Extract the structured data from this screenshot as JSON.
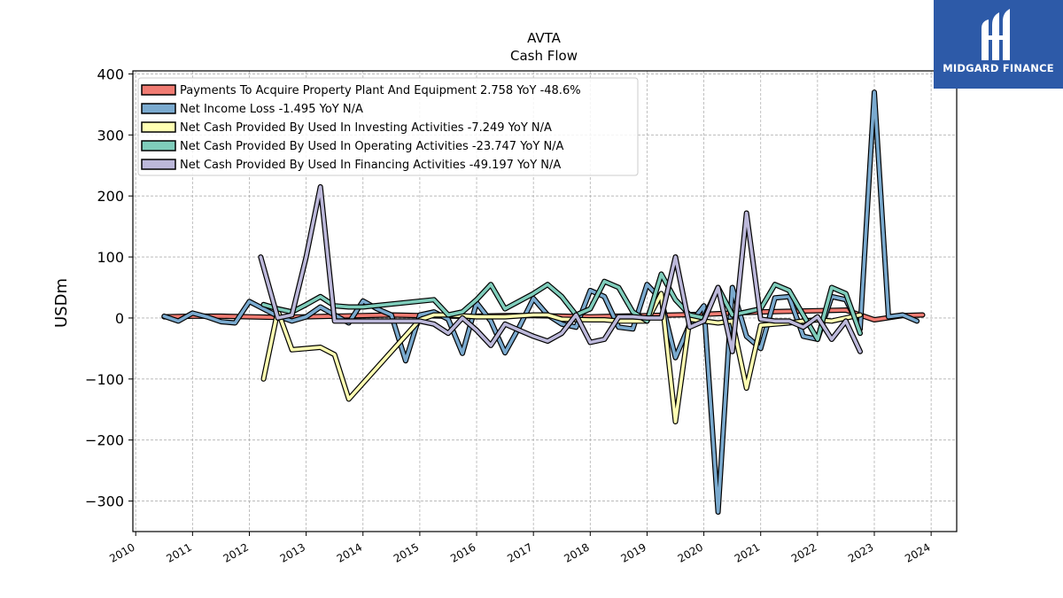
{
  "brand": {
    "name": "MIDGARD FINANCE",
    "bg": "#2d5aa8"
  },
  "chart_data": {
    "type": "line",
    "title": "AVTA",
    "subtitle": "Cash Flow",
    "ylabel": "USDm",
    "xlabel": "",
    "ylim": [
      -350,
      405
    ],
    "xlim": [
      2009.95,
      2024.45
    ],
    "yticks": [
      -300,
      -200,
      -100,
      0,
      100,
      200,
      300,
      400
    ],
    "ytick_labels": [
      "−300",
      "−200",
      "−100",
      "0",
      "100",
      "200",
      "300",
      "400"
    ],
    "xticks": [
      2010,
      2011,
      2012,
      2013,
      2014,
      2015,
      2016,
      2017,
      2018,
      2019,
      2020,
      2021,
      2022,
      2023,
      2024
    ],
    "xtick_labels": [
      "2010",
      "2011",
      "2012",
      "2013",
      "2014",
      "2015",
      "2016",
      "2017",
      "2018",
      "2019",
      "2020",
      "2021",
      "2022",
      "2023",
      "2024"
    ],
    "grid": true,
    "legend_position": "top-left",
    "series": [
      {
        "name": "Payments To Acquire Property Plant And Equipment  2.758 YoY -48.6%",
        "color": "#f07b72",
        "x": [
          2010.5,
          2011.0,
          2011.5,
          2012.0,
          2012.5,
          2013.0,
          2013.5,
          2014.0,
          2014.5,
          2015.0,
          2015.5,
          2016.0,
          2016.5,
          2017.0,
          2017.5,
          2018.0,
          2018.5,
          2019.0,
          2019.5,
          2020.0,
          2020.5,
          2021.0,
          2021.5,
          2022.0,
          2022.5,
          2023.0,
          2023.5,
          2023.85
        ],
        "y": [
          2,
          3,
          3,
          2,
          1,
          2,
          3,
          4,
          5,
          4,
          3,
          3,
          4,
          4,
          3,
          2,
          3,
          4,
          5,
          6,
          8,
          10,
          11,
          12,
          13,
          -3,
          4,
          5
        ]
      },
      {
        "name": "Net Income Loss  -1.495 YoY N/A",
        "color": "#7aaacf",
        "x": [
          2010.5,
          2010.75,
          2011.0,
          2011.25,
          2011.5,
          2011.75,
          2012.0,
          2012.25,
          2012.5,
          2012.75,
          2013.0,
          2013.25,
          2013.5,
          2013.75,
          2014.0,
          2014.25,
          2014.5,
          2014.75,
          2015.0,
          2015.25,
          2015.5,
          2015.75,
          2016.0,
          2016.25,
          2016.5,
          2016.75,
          2017.0,
          2017.25,
          2017.5,
          2017.75,
          2018.0,
          2018.25,
          2018.5,
          2018.75,
          2019.0,
          2019.25,
          2019.5,
          2019.75,
          2020.0,
          2020.25,
          2020.5,
          2020.75,
          2021.0,
          2021.25,
          2021.5,
          2021.75,
          2022.0,
          2022.25,
          2022.5,
          2022.75,
          2023.0,
          2023.25,
          2023.5,
          2023.75
        ],
        "y": [
          3,
          -5,
          8,
          2,
          -6,
          -8,
          27,
          15,
          3,
          -5,
          2,
          18,
          5,
          -8,
          28,
          15,
          5,
          -70,
          5,
          10,
          -2,
          -58,
          25,
          -5,
          -57,
          -15,
          32,
          5,
          -10,
          -15,
          45,
          35,
          -15,
          -18,
          55,
          30,
          -65,
          -10,
          20,
          -318,
          50,
          -30,
          -50,
          33,
          35,
          -30,
          -35,
          35,
          30,
          -18,
          370,
          2,
          5,
          -5
        ]
      },
      {
        "name": "Net Cash Provided By Used In Investing Activities  -7.249 YoY N/A",
        "color": "#ffffb3",
        "x": [
          2012.25,
          2012.5,
          2012.75,
          2013.0,
          2013.25,
          2013.5,
          2013.75,
          2015.0,
          2015.25,
          2015.5,
          2016.0,
          2016.5,
          2017.0,
          2017.25,
          2017.5,
          2018.0,
          2018.25,
          2018.5,
          2019.0,
          2019.25,
          2019.5,
          2019.75,
          2020.0,
          2020.25,
          2020.5,
          2020.75,
          2021.0,
          2021.25,
          2021.5,
          2021.75,
          2022.0,
          2022.25,
          2022.5,
          2022.75
        ],
        "y": [
          -100,
          12,
          -52,
          -50,
          -48,
          -60,
          -133,
          -3,
          5,
          5,
          2,
          2,
          5,
          5,
          -2,
          -3,
          -3,
          -5,
          -5,
          40,
          -170,
          -2,
          -5,
          -8,
          -5,
          -115,
          -12,
          -10,
          -8,
          -5,
          -3,
          -5,
          0,
          5
        ]
      },
      {
        "name": "Net Cash Provided By Used In Operating Activities  -23.747 YoY N/A",
        "color": "#7fcdbb",
        "x": [
          2012.25,
          2012.5,
          2012.75,
          2013.0,
          2013.25,
          2013.5,
          2013.75,
          2014.0,
          2015.25,
          2015.5,
          2015.75,
          2016.0,
          2016.25,
          2016.5,
          2017.0,
          2017.25,
          2017.5,
          2017.75,
          2018.0,
          2018.25,
          2018.5,
          2018.75,
          2019.0,
          2019.25,
          2019.5,
          2019.75,
          2020.0,
          2020.25,
          2020.5,
          2020.75,
          2021.0,
          2021.25,
          2021.5,
          2021.75,
          2022.0,
          2022.25,
          2022.5,
          2022.75
        ],
        "y": [
          22,
          15,
          10,
          22,
          35,
          20,
          18,
          18,
          30,
          5,
          10,
          30,
          55,
          15,
          40,
          55,
          35,
          5,
          15,
          60,
          50,
          10,
          -5,
          72,
          30,
          5,
          0,
          50,
          5,
          10,
          15,
          55,
          45,
          5,
          -35,
          50,
          40,
          -25
        ]
      },
      {
        "name": "Net Cash Provided By Used In Financing Activities  -49.197 YoY N/A",
        "color": "#bcb8da",
        "x": [
          2012.2,
          2012.5,
          2012.75,
          2013.0,
          2013.25,
          2013.5,
          2014.0,
          2014.5,
          2015.0,
          2015.25,
          2015.5,
          2015.75,
          2016.0,
          2016.25,
          2016.5,
          2016.75,
          2017.0,
          2017.25,
          2017.5,
          2017.75,
          2018.0,
          2018.25,
          2018.5,
          2018.75,
          2019.0,
          2019.25,
          2019.5,
          2019.75,
          2020.0,
          2020.25,
          2020.5,
          2020.75,
          2021.0,
          2021.25,
          2021.5,
          2021.75,
          2022.0,
          2022.25,
          2022.5,
          2022.75
        ],
        "y": [
          100,
          0,
          5,
          100,
          215,
          -5,
          -5,
          -5,
          -5,
          -10,
          -25,
          0,
          -20,
          -45,
          -10,
          -20,
          -30,
          -38,
          -25,
          5,
          -40,
          -35,
          2,
          2,
          0,
          0,
          100,
          -15,
          -5,
          50,
          -55,
          172,
          -2,
          -5,
          -5,
          -15,
          2,
          -35,
          -5,
          -55
        ]
      }
    ]
  }
}
